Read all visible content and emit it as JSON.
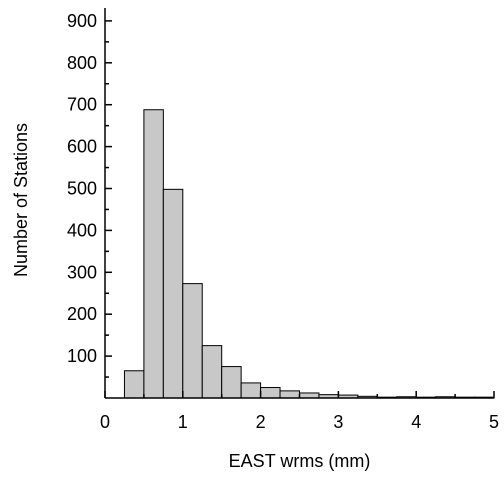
{
  "chart_data": {
    "type": "bar",
    "xlabel": "EAST  wrms (mm)",
    "ylabel": "Number of Stations",
    "xlim": [
      0,
      5
    ],
    "ylim": [
      0,
      920
    ],
    "x_ticks": [
      "0",
      "1",
      "2",
      "3",
      "4",
      "5"
    ],
    "y_ticks": [
      "100",
      "200",
      "300",
      "400",
      "500",
      "600",
      "700",
      "800",
      "900"
    ],
    "bin_width": 0.25,
    "bins": [
      {
        "x0": 0.25,
        "value": 65
      },
      {
        "x0": 0.5,
        "value": 688
      },
      {
        "x0": 0.75,
        "value": 498
      },
      {
        "x0": 1.0,
        "value": 273
      },
      {
        "x0": 1.25,
        "value": 125
      },
      {
        "x0": 1.5,
        "value": 75
      },
      {
        "x0": 1.75,
        "value": 36
      },
      {
        "x0": 2.0,
        "value": 25
      },
      {
        "x0": 2.25,
        "value": 17
      },
      {
        "x0": 2.5,
        "value": 12
      },
      {
        "x0": 2.75,
        "value": 8
      },
      {
        "x0": 3.0,
        "value": 7
      },
      {
        "x0": 3.25,
        "value": 4
      },
      {
        "x0": 3.5,
        "value": 2
      },
      {
        "x0": 3.75,
        "value": 3
      },
      {
        "x0": 4.0,
        "value": 2
      },
      {
        "x0": 4.25,
        "value": 3
      },
      {
        "x0": 4.5,
        "value": 2
      },
      {
        "x0": 4.75,
        "value": 2
      }
    ],
    "bar_color": "#c8c8c8",
    "grid": false,
    "legend": "none"
  }
}
